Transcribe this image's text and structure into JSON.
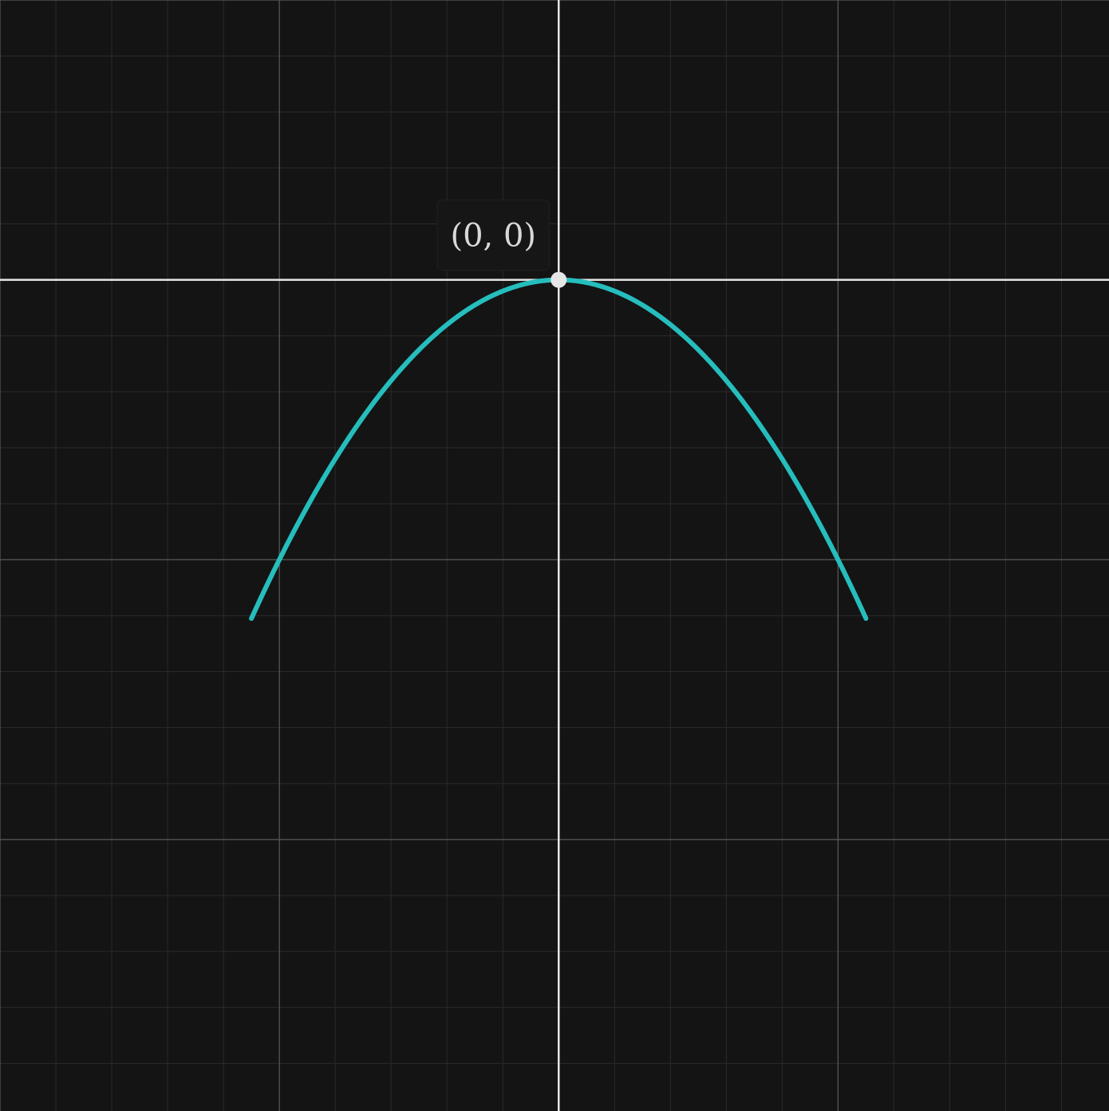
{
  "chart_data": {
    "type": "line",
    "title": "",
    "xlabel": "",
    "ylabel": "",
    "xlim": [
      -2,
      1.97
    ],
    "ylim": [
      -2.97,
      1
    ],
    "grid": true,
    "major_step": 1,
    "minor_step": 0.2,
    "series": [
      {
        "function": "y = -x^2",
        "color": "#26bdbd",
        "x_range": [
          -1.1,
          1.1
        ]
      }
    ],
    "points": [
      {
        "x": 0,
        "y": 0,
        "label": "(0, 0)",
        "color": "#e6e6e6"
      }
    ]
  },
  "colors": {
    "background": "#141414",
    "axis": "#e6e6e6",
    "major_grid": "#5a5a5a",
    "minor_grid": "#2a2a2a"
  }
}
